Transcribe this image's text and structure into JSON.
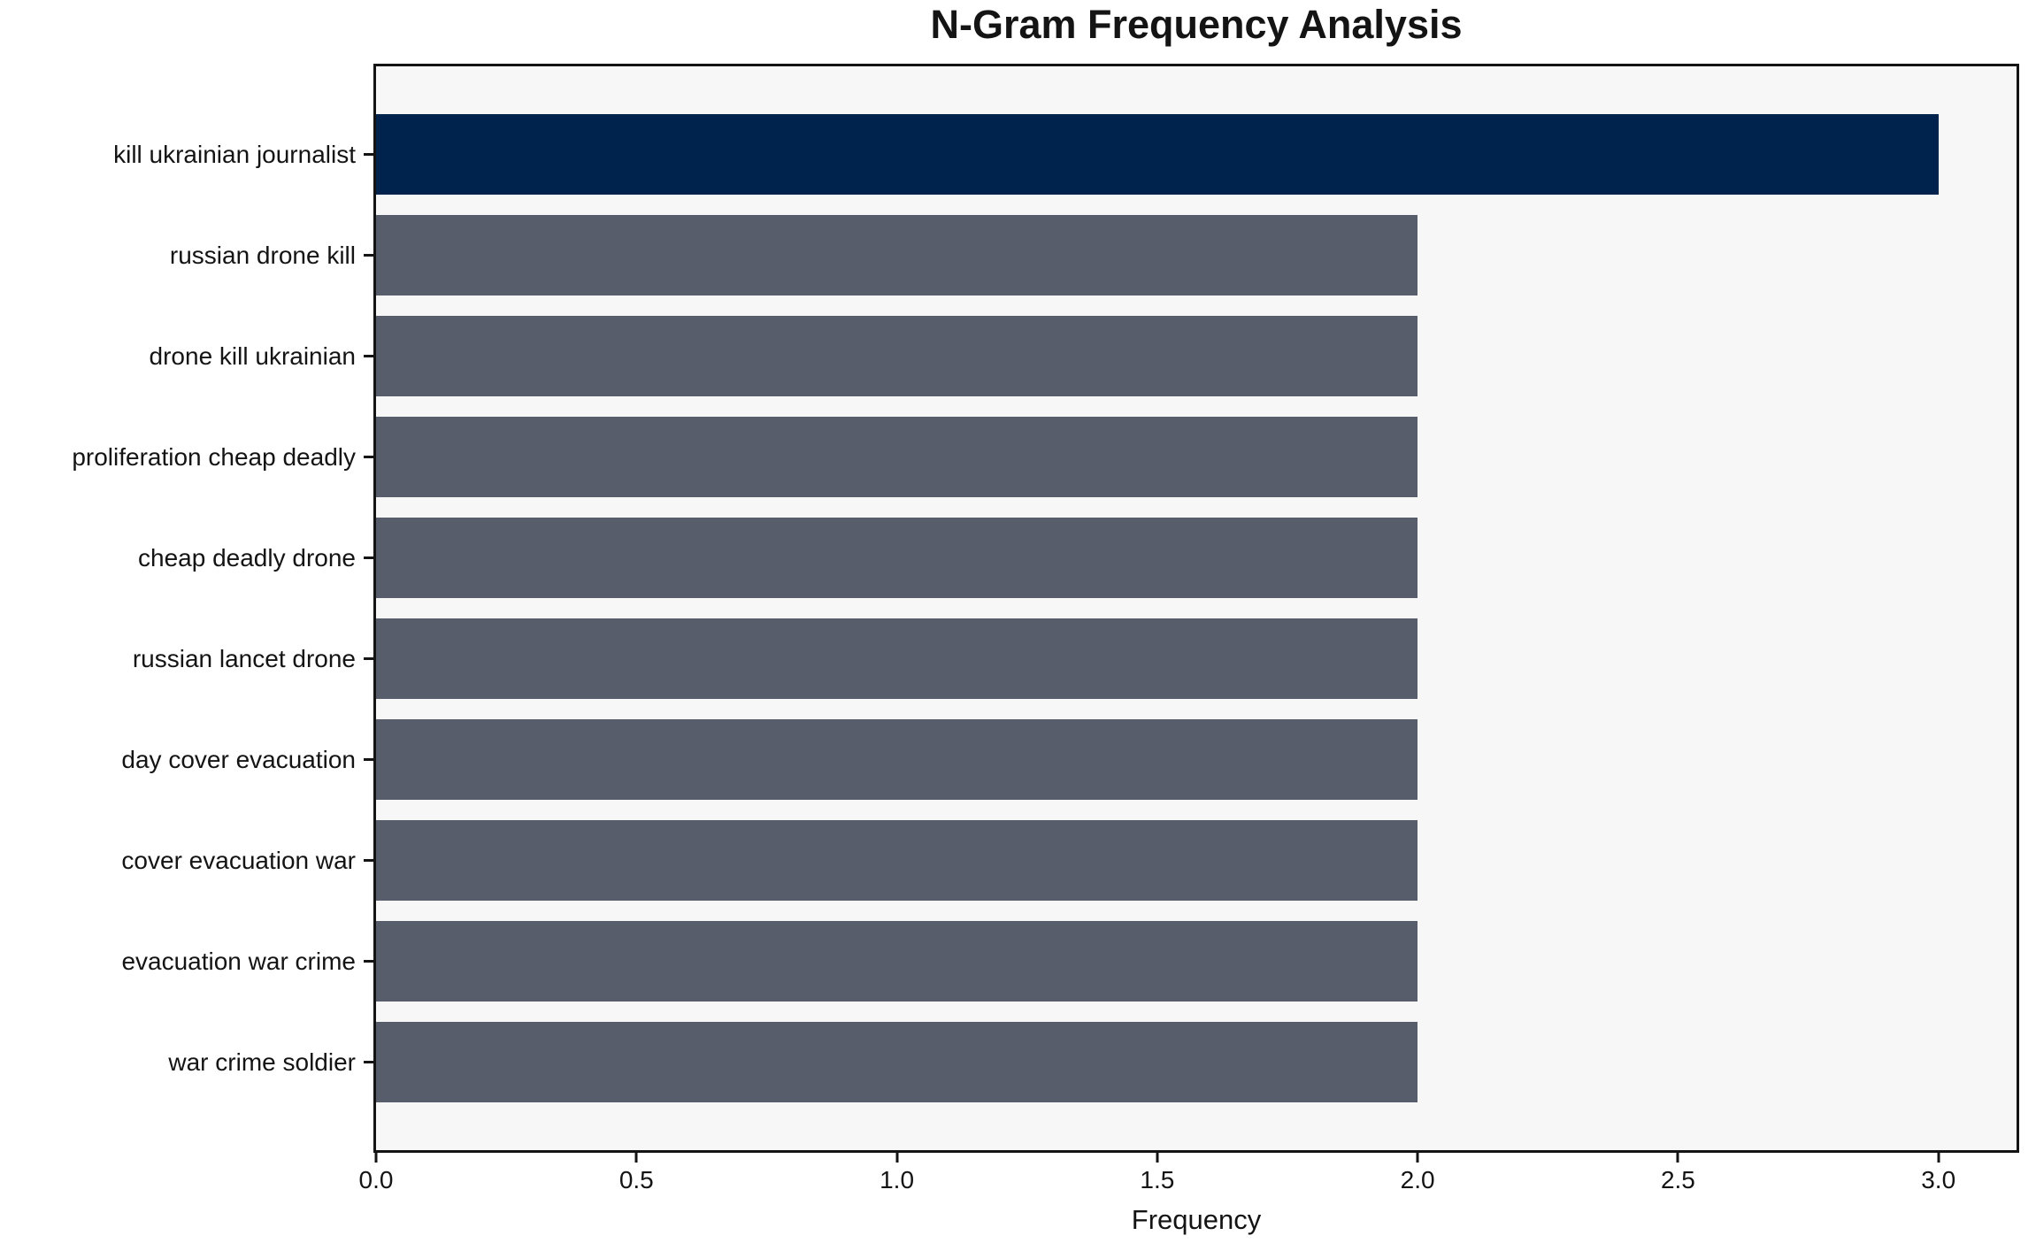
{
  "title": "N-Gram Frequency Analysis",
  "xlabel": "Frequency",
  "colors": {
    "highlight_bar": "#00234e",
    "default_bar": "#575d6b",
    "plot_background": "#f7f7f8",
    "page_background": "#ffffff",
    "text_and_spines": "#141414"
  },
  "chart_data": {
    "type": "bar",
    "orientation": "horizontal",
    "title": "N-Gram Frequency Analysis",
    "xlabel": "Frequency",
    "ylabel": "",
    "categories": [
      "kill ukrainian journalist",
      "russian drone kill",
      "drone kill ukrainian",
      "proliferation cheap deadly",
      "cheap deadly drone",
      "russian lancet drone",
      "day cover evacuation",
      "cover evacuation war",
      "evacuation war crime",
      "war crime soldier"
    ],
    "values": [
      3,
      2,
      2,
      2,
      2,
      2,
      2,
      2,
      2,
      2
    ],
    "bar_colors": [
      "#00234e",
      "#575d6b",
      "#575d6b",
      "#575d6b",
      "#575d6b",
      "#575d6b",
      "#575d6b",
      "#575d6b",
      "#575d6b",
      "#575d6b"
    ],
    "xlim": [
      0,
      3.15
    ],
    "xticks": [
      0.0,
      0.5,
      1.0,
      1.5,
      2.0,
      2.5,
      3.0
    ],
    "xtick_labels": [
      "0.0",
      "0.5",
      "1.0",
      "1.5",
      "2.0",
      "2.5",
      "3.0"
    ],
    "grid": false,
    "legend": false
  }
}
